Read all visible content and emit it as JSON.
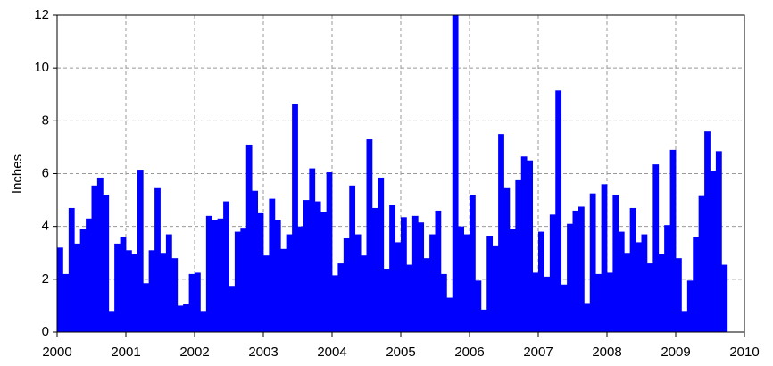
{
  "chart_data": {
    "type": "histogram",
    "y_label": "Inches",
    "color": "#0000ff",
    "bins": [
      2000,
      2000.083,
      2000.167,
      2000.25,
      2000.333,
      2000.417,
      2000.5,
      2000.583,
      2000.667,
      2000.75,
      2000.833,
      2000.917,
      2001,
      2001.083,
      2001.167,
      2001.25,
      2001.333,
      2001.417,
      2001.5,
      2001.583,
      2001.667,
      2001.75,
      2001.833,
      2001.917,
      2002,
      2002.083,
      2002.167,
      2002.25,
      2002.333,
      2002.417,
      2002.5,
      2002.583,
      2002.667,
      2002.75,
      2002.833,
      2002.917,
      2003,
      2003.083,
      2003.167,
      2003.25,
      2003.333,
      2003.417,
      2003.5,
      2003.583,
      2003.667,
      2003.75,
      2003.833,
      2003.917,
      2004,
      2004.083,
      2004.167,
      2004.25,
      2004.333,
      2004.417,
      2004.5,
      2004.583,
      2004.667,
      2004.75,
      2004.833,
      2004.917,
      2005,
      2005.083,
      2005.167,
      2005.25,
      2005.333,
      2005.417,
      2005.5,
      2005.583,
      2005.667,
      2005.75,
      2005.833,
      2005.917,
      2006,
      2006.083,
      2006.167,
      2006.25,
      2006.333,
      2006.417,
      2006.5,
      2006.583,
      2006.667,
      2006.75,
      2006.833,
      2006.917,
      2007,
      2007.083,
      2007.167,
      2007.25,
      2007.333,
      2007.417,
      2007.5,
      2007.583,
      2007.667,
      2007.75,
      2007.833,
      2007.917,
      2008,
      2008.083,
      2008.167,
      2008.25,
      2008.333,
      2008.417,
      2008.5,
      2008.583,
      2008.667,
      2008.75,
      2008.833,
      2008.917,
      2009,
      2009.083,
      2009.167,
      2009.25,
      2009.333,
      2009.417,
      2009.5,
      2009.583,
      2009.667,
      2009.75
    ],
    "values": [
      3.2,
      2.2,
      4.7,
      3.35,
      3.9,
      4.3,
      5.55,
      5.85,
      5.2,
      0.8,
      3.35,
      3.6,
      3.1,
      2.95,
      6.15,
      1.85,
      3.1,
      5.45,
      3.0,
      3.7,
      2.8,
      1.0,
      1.05,
      2.2,
      2.25,
      0.8,
      4.4,
      4.25,
      4.3,
      4.95,
      1.75,
      3.8,
      3.95,
      7.1,
      5.35,
      4.5,
      2.9,
      5.05,
      4.25,
      3.15,
      3.7,
      8.65,
      4.0,
      5.0,
      6.2,
      4.95,
      4.55,
      6.05,
      2.15,
      2.6,
      3.55,
      5.55,
      3.7,
      2.9,
      7.3,
      4.7,
      5.85,
      2.4,
      4.8,
      3.4,
      4.35,
      2.55,
      4.4,
      4.15,
      2.8,
      3.7,
      4.6,
      2.2,
      1.3,
      12.0,
      4.0,
      3.7,
      5.2,
      1.95,
      0.85,
      3.65,
      3.25,
      7.5,
      5.45,
      3.9,
      5.75,
      6.65,
      6.5,
      2.25,
      3.8,
      2.1,
      4.45,
      9.15,
      1.8,
      4.1,
      4.6,
      4.75,
      1.1,
      5.25,
      2.2,
      5.6,
      2.25,
      5.2,
      3.8,
      3.0,
      4.7,
      3.4,
      3.7,
      2.6,
      6.35,
      2.95,
      4.05,
      6.9,
      2.8,
      0.8,
      1.95,
      3.6,
      5.15,
      7.6,
      6.1,
      6.85,
      2.55
    ],
    "xlim": [
      2000,
      2010
    ],
    "xticks": [
      2000,
      2001,
      2002,
      2003,
      2004,
      2005,
      2006,
      2007,
      2008,
      2009,
      2010
    ],
    "ylim": [
      0,
      12
    ],
    "yticks": [
      0,
      2,
      4,
      6,
      8,
      10,
      12
    ],
    "grid": true
  }
}
